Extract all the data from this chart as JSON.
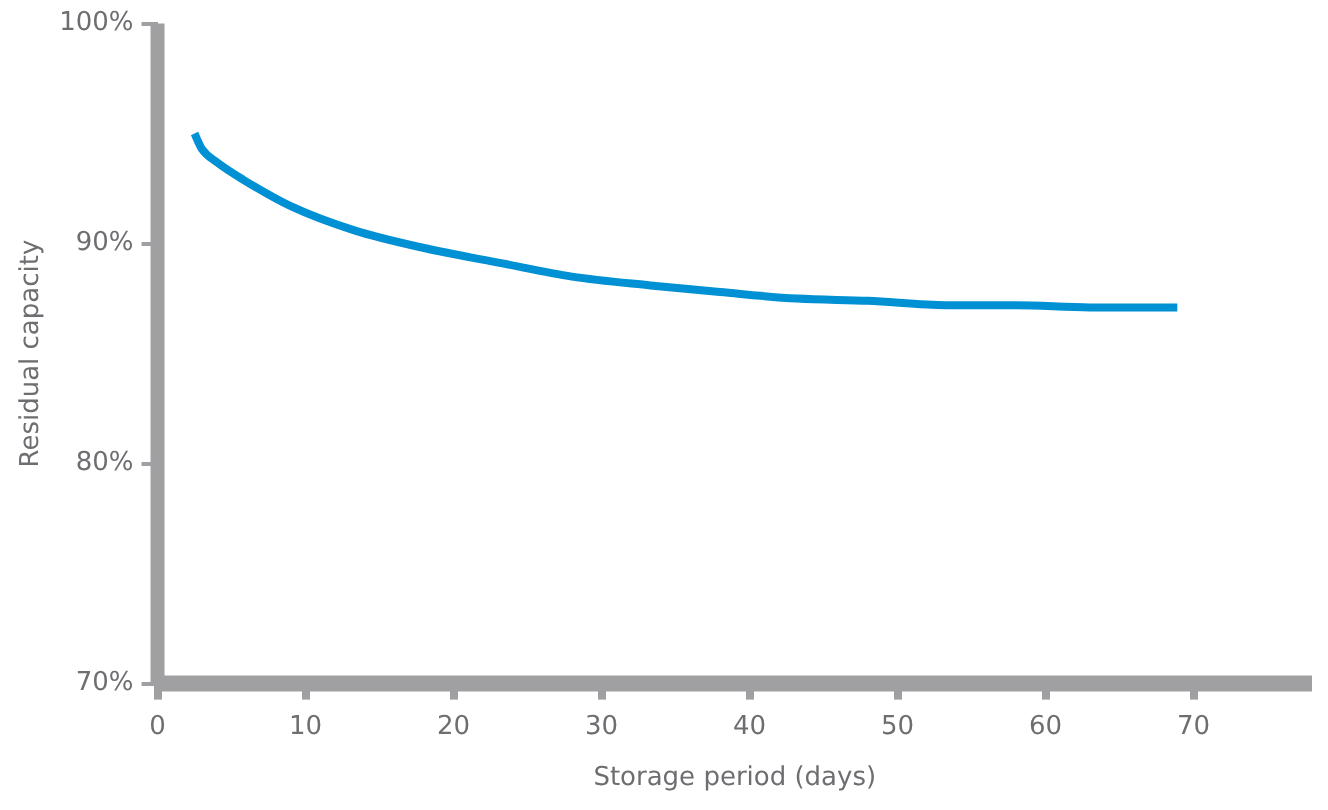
{
  "chart_data": {
    "type": "line",
    "xlabel": "Storage period (days)",
    "ylabel": "Residual capacity",
    "xlim": [
      0,
      78
    ],
    "xticks": [
      0,
      10,
      20,
      30,
      40,
      50,
      60,
      70
    ],
    "ylim": [
      70,
      100
    ],
    "yticks": [
      {
        "value": 70,
        "label": "70%"
      },
      {
        "value": 80,
        "label": "80%"
      },
      {
        "value": 90,
        "label": "90%"
      },
      {
        "value": 100,
        "label": "100%"
      }
    ],
    "grid": false,
    "legend": false,
    "marker": "none",
    "line_style": "solid",
    "series": [
      {
        "color": "#0090d4",
        "x": [
          2.5,
          3,
          4,
          5.8,
          9,
          13.3,
          18,
          23.3,
          28,
          33.3,
          38,
          43.2,
          48,
          53.3,
          58,
          63,
          68.9
        ],
        "values": [
          95.0,
          94.3,
          93.7,
          92.9,
          91.7,
          90.6,
          89.8,
          89.1,
          88.5,
          88.1,
          87.8,
          87.5,
          87.4,
          87.2,
          87.2,
          87.1,
          87.1
        ]
      }
    ]
  }
}
